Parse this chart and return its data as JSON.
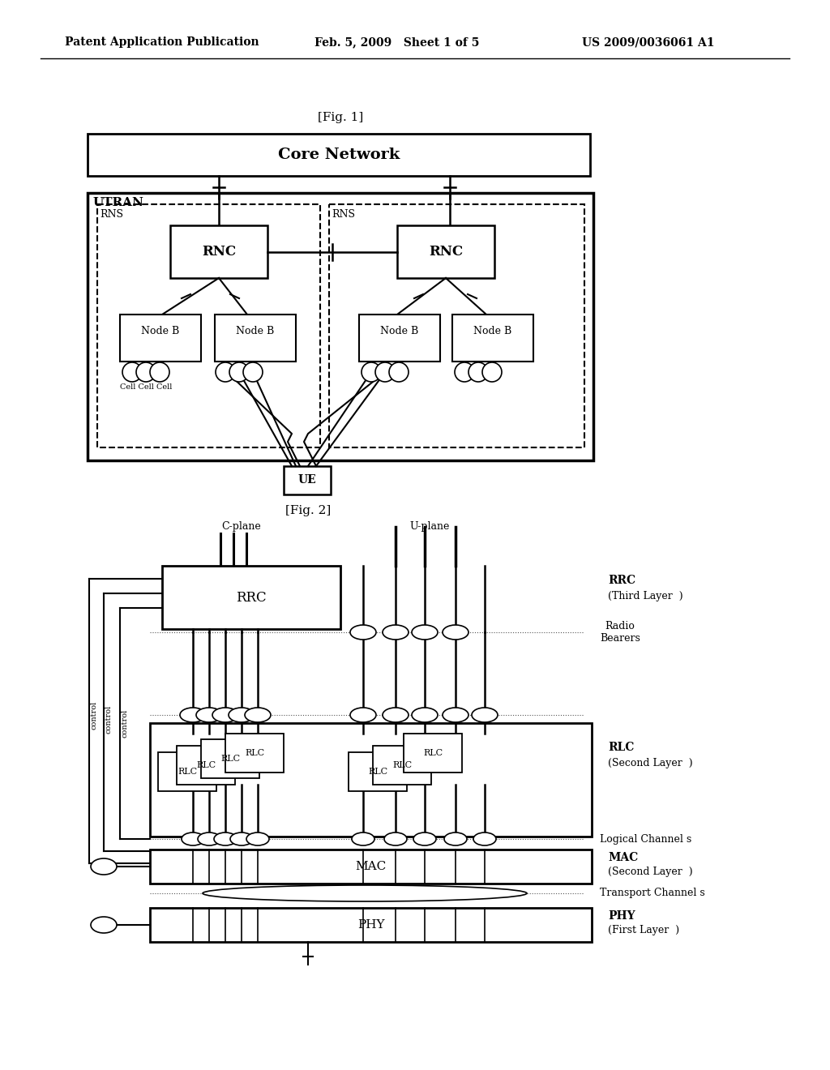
{
  "bg_color": "#ffffff",
  "header_text": "Patent Application Publication",
  "header_date": "Feb. 5, 2009   Sheet 1 of 5",
  "header_patent": "US 2009/0036061 A1",
  "fig1_label": "[Fig. 1]",
  "fig2_label": "[Fig. 2]",
  "core_network_label": "Core Network",
  "utran_label": "UTRAN",
  "rns_label": "RNS",
  "rnc_label": "RNC",
  "node_b_label": "Node B",
  "cell_label": "Cell Cell Cell",
  "ue_label": "UE",
  "rrc_label": "RRC",
  "rlc_label": "RLC",
  "mac_label": "MAC",
  "phy_label": "PHY",
  "rrc_layer": "(Third Layer  )",
  "rlc_layer": "(Second Layer  )",
  "mac_layer": "(Second Layer  )",
  "phy_layer": "(First Layer  )",
  "radio_bearers": "Radio\nBearers",
  "logical_channels": "Logical Channel s",
  "transport_channels": "Transport Channel s",
  "c_plane": "C-plane",
  "u_plane": "U-plane"
}
